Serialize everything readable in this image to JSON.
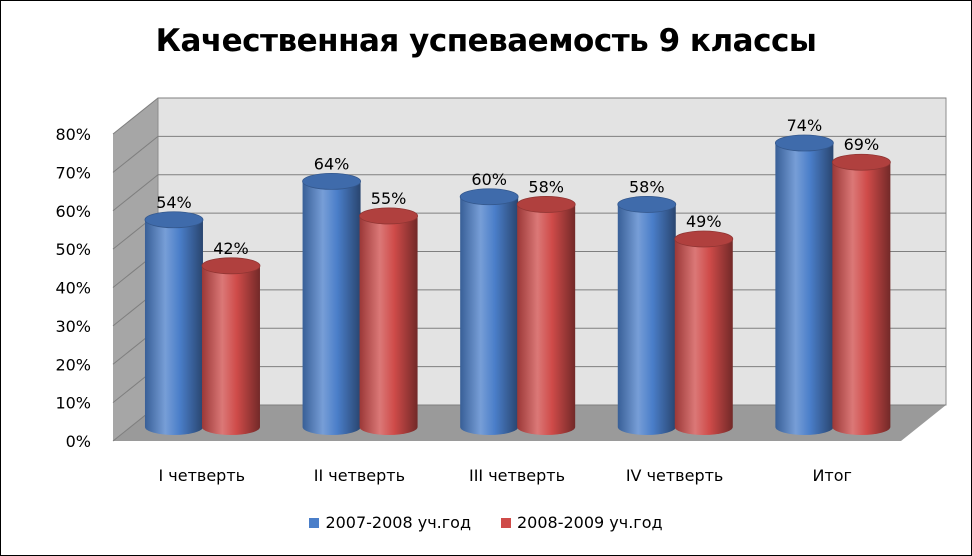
{
  "chart_data": {
    "type": "bar",
    "style": "3d-cylinder",
    "title": "Качественная успеваемость 9 классы",
    "categories": [
      "I четверть",
      "II четверть",
      "III четверть",
      "IV четверть",
      "Итог"
    ],
    "series": [
      {
        "name": "2007-2008 уч.год",
        "color": "#4a7ec9",
        "values": [
          54,
          64,
          60,
          58,
          74
        ],
        "labels": [
          "54%",
          "64%",
          "60%",
          "58%",
          "74%"
        ]
      },
      {
        "name": "2008-2009 уч.год",
        "color": "#cf4b49",
        "values": [
          42,
          55,
          58,
          49,
          69
        ],
        "labels": [
          "42%",
          "55%",
          "58%",
          "49%",
          "69%"
        ]
      }
    ],
    "ylim": [
      0,
      80
    ],
    "yticks": [
      "0%",
      "10%",
      "20%",
      "30%",
      "40%",
      "50%",
      "60%",
      "70%",
      "80%"
    ],
    "grid": true,
    "legend_position": "bottom"
  }
}
